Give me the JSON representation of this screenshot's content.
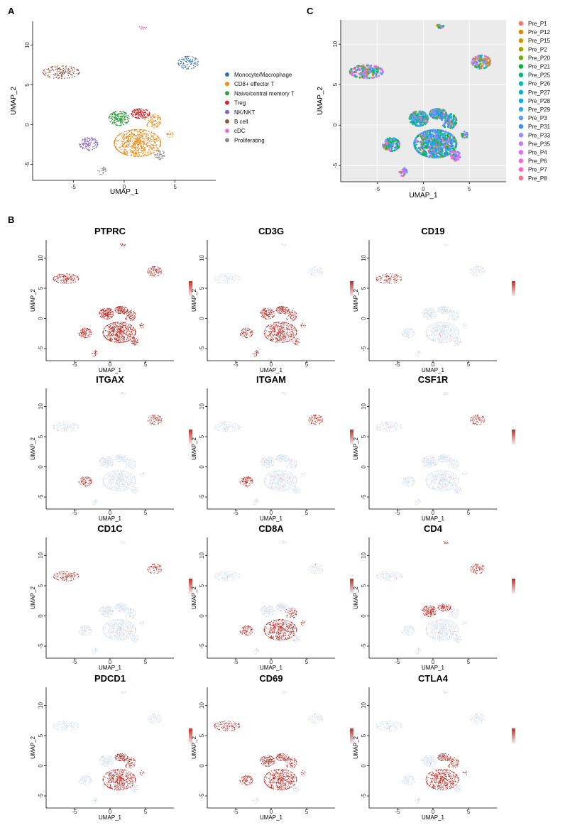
{
  "panels": {
    "a": "A",
    "b": "B",
    "c": "C"
  },
  "colors": {
    "celltype": [
      "#2e73b8",
      "#f08a1c",
      "#2f9e3a",
      "#d0262d",
      "#8a62c0",
      "#8b5a44",
      "#e377c2",
      "#8c8c8c"
    ],
    "feature_low": "#dce6f2",
    "feature_high": "#c42b20"
  },
  "chart_data": [
    {
      "id": "umap-celltype",
      "type": "scatter",
      "title": "",
      "xlabel": "UMAP_1",
      "ylabel": "UMAP_2",
      "xlim": [
        -9,
        9
      ],
      "ylim": [
        -7,
        13
      ],
      "xticks": [
        -5,
        0,
        5
      ],
      "yticks": [
        -5,
        0,
        5,
        10
      ],
      "grid": false,
      "legend": "right",
      "series": [
        {
          "name": "Monocyte/Macrophage",
          "color": "#2e73b8",
          "clusters": [
            [
              6.3,
              7.8,
              1.0,
              0.8,
              90
            ]
          ]
        },
        {
          "name": "CD8+ effector T",
          "color": "#f08a1c",
          "clusters": [
            [
              1.3,
              -2.3,
              2.3,
              1.7,
              620
            ],
            [
              2.8,
              0.5,
              0.8,
              0.9,
              90
            ],
            [
              4.5,
              -1.2,
              0.3,
              0.4,
              15
            ]
          ]
        },
        {
          "name": "Naive/central memory T",
          "color": "#2f9e3a",
          "clusters": [
            [
              -0.5,
              0.8,
              1.0,
              0.9,
              200
            ]
          ]
        },
        {
          "name": "Treg",
          "color": "#d0262d",
          "clusters": [
            [
              1.6,
              1.4,
              0.9,
              0.6,
              150
            ]
          ]
        },
        {
          "name": "NK/NKT",
          "color": "#8a62c0",
          "clusters": [
            [
              -3.5,
              -2.4,
              0.9,
              0.8,
              110
            ]
          ]
        },
        {
          "name": "B cell",
          "color": "#8b5a44",
          "clusters": [
            [
              -6.2,
              6.6,
              1.8,
              0.8,
              150
            ]
          ]
        },
        {
          "name": "cDC",
          "color": "#e377c2",
          "clusters": [
            [
              1.8,
              12.2,
              0.4,
              0.2,
              14
            ]
          ]
        },
        {
          "name": "Proliferating",
          "color": "#8c8c8c",
          "clusters": [
            [
              3.5,
              -3.8,
              0.5,
              0.6,
              50
            ],
            [
              -2.2,
              -5.8,
              0.4,
              0.5,
              25
            ]
          ]
        }
      ]
    },
    {
      "id": "umap-sample",
      "type": "scatter",
      "title": "",
      "xlabel": "UMAP_1",
      "ylabel": "UMAP_2",
      "xlim": [
        -9,
        9
      ],
      "ylim": [
        -7,
        13
      ],
      "xticks": [
        -5,
        0,
        5
      ],
      "yticks": [
        -5,
        0,
        5,
        10
      ],
      "grid": true,
      "legend": "right",
      "series": [
        {
          "name": "Pre_P1",
          "color": "#f8766d"
        },
        {
          "name": "Pre_P12",
          "color": "#e58700"
        },
        {
          "name": "Pre_P15",
          "color": "#c99800"
        },
        {
          "name": "Pre_P2",
          "color": "#a3a500"
        },
        {
          "name": "Pre_P20",
          "color": "#6bb100"
        },
        {
          "name": "Pre_P21",
          "color": "#00ba38"
        },
        {
          "name": "Pre_P25",
          "color": "#00bf7d"
        },
        {
          "name": "Pre_P26",
          "color": "#00c0af"
        },
        {
          "name": "Pre_P27",
          "color": "#00bcd8"
        },
        {
          "name": "Pre_P28",
          "color": "#00b0f6"
        },
        {
          "name": "Pre_P29",
          "color": "#35a2ff"
        },
        {
          "name": "Pre_P3",
          "color": "#619cff"
        },
        {
          "name": "Pre_P31",
          "color": "#3d8bff"
        },
        {
          "name": "Pre_P33",
          "color": "#9590ff"
        },
        {
          "name": "Pre_P35",
          "color": "#c77cff"
        },
        {
          "name": "Pre_P4",
          "color": "#e76bf3"
        },
        {
          "name": "Pre_P6",
          "color": "#fa62db"
        },
        {
          "name": "Pre_P7",
          "color": "#ff62bc"
        },
        {
          "name": "Pre_P8",
          "color": "#ff6a98"
        }
      ]
    },
    {
      "id": "feature-plots",
      "type": "scatter",
      "xlabel": "UMAP_1",
      "ylabel": "UMAP_2",
      "legend": "right",
      "features": [
        {
          "name": "PTPRC",
          "high": [
            "all"
          ]
        },
        {
          "name": "CD3G",
          "high": [
            "CD8+ effector T",
            "Naive/central memory T",
            "Treg",
            "NK/NKT",
            "Proliferating"
          ]
        },
        {
          "name": "CD19",
          "high": [
            "B cell"
          ]
        },
        {
          "name": "ITGAX",
          "high": [
            "Monocyte/Macrophage",
            "NK/NKT"
          ]
        },
        {
          "name": "ITGAM",
          "high": [
            "Monocyte/Macrophage",
            "NK/NKT"
          ]
        },
        {
          "name": "CSF1R",
          "high": [
            "Monocyte/Macrophage"
          ]
        },
        {
          "name": "CD1C",
          "high": [
            "B cell",
            "Monocyte/Macrophage"
          ]
        },
        {
          "name": "CD8A",
          "high": [
            "CD8+ effector T",
            "NK/NKT"
          ]
        },
        {
          "name": "CD4",
          "high": [
            "Treg",
            "Naive/central memory T",
            "Monocyte/Macrophage",
            "cDC"
          ]
        },
        {
          "name": "PDCD1",
          "high": [
            "Treg",
            "CD8+ effector T"
          ]
        },
        {
          "name": "CD69",
          "high": [
            "CD8+ effector T",
            "Naive/central memory T",
            "Treg",
            "B cell",
            "NK/NKT"
          ]
        },
        {
          "name": "CTLA4",
          "high": [
            "Treg",
            "CD8+ effector T"
          ]
        }
      ]
    }
  ]
}
